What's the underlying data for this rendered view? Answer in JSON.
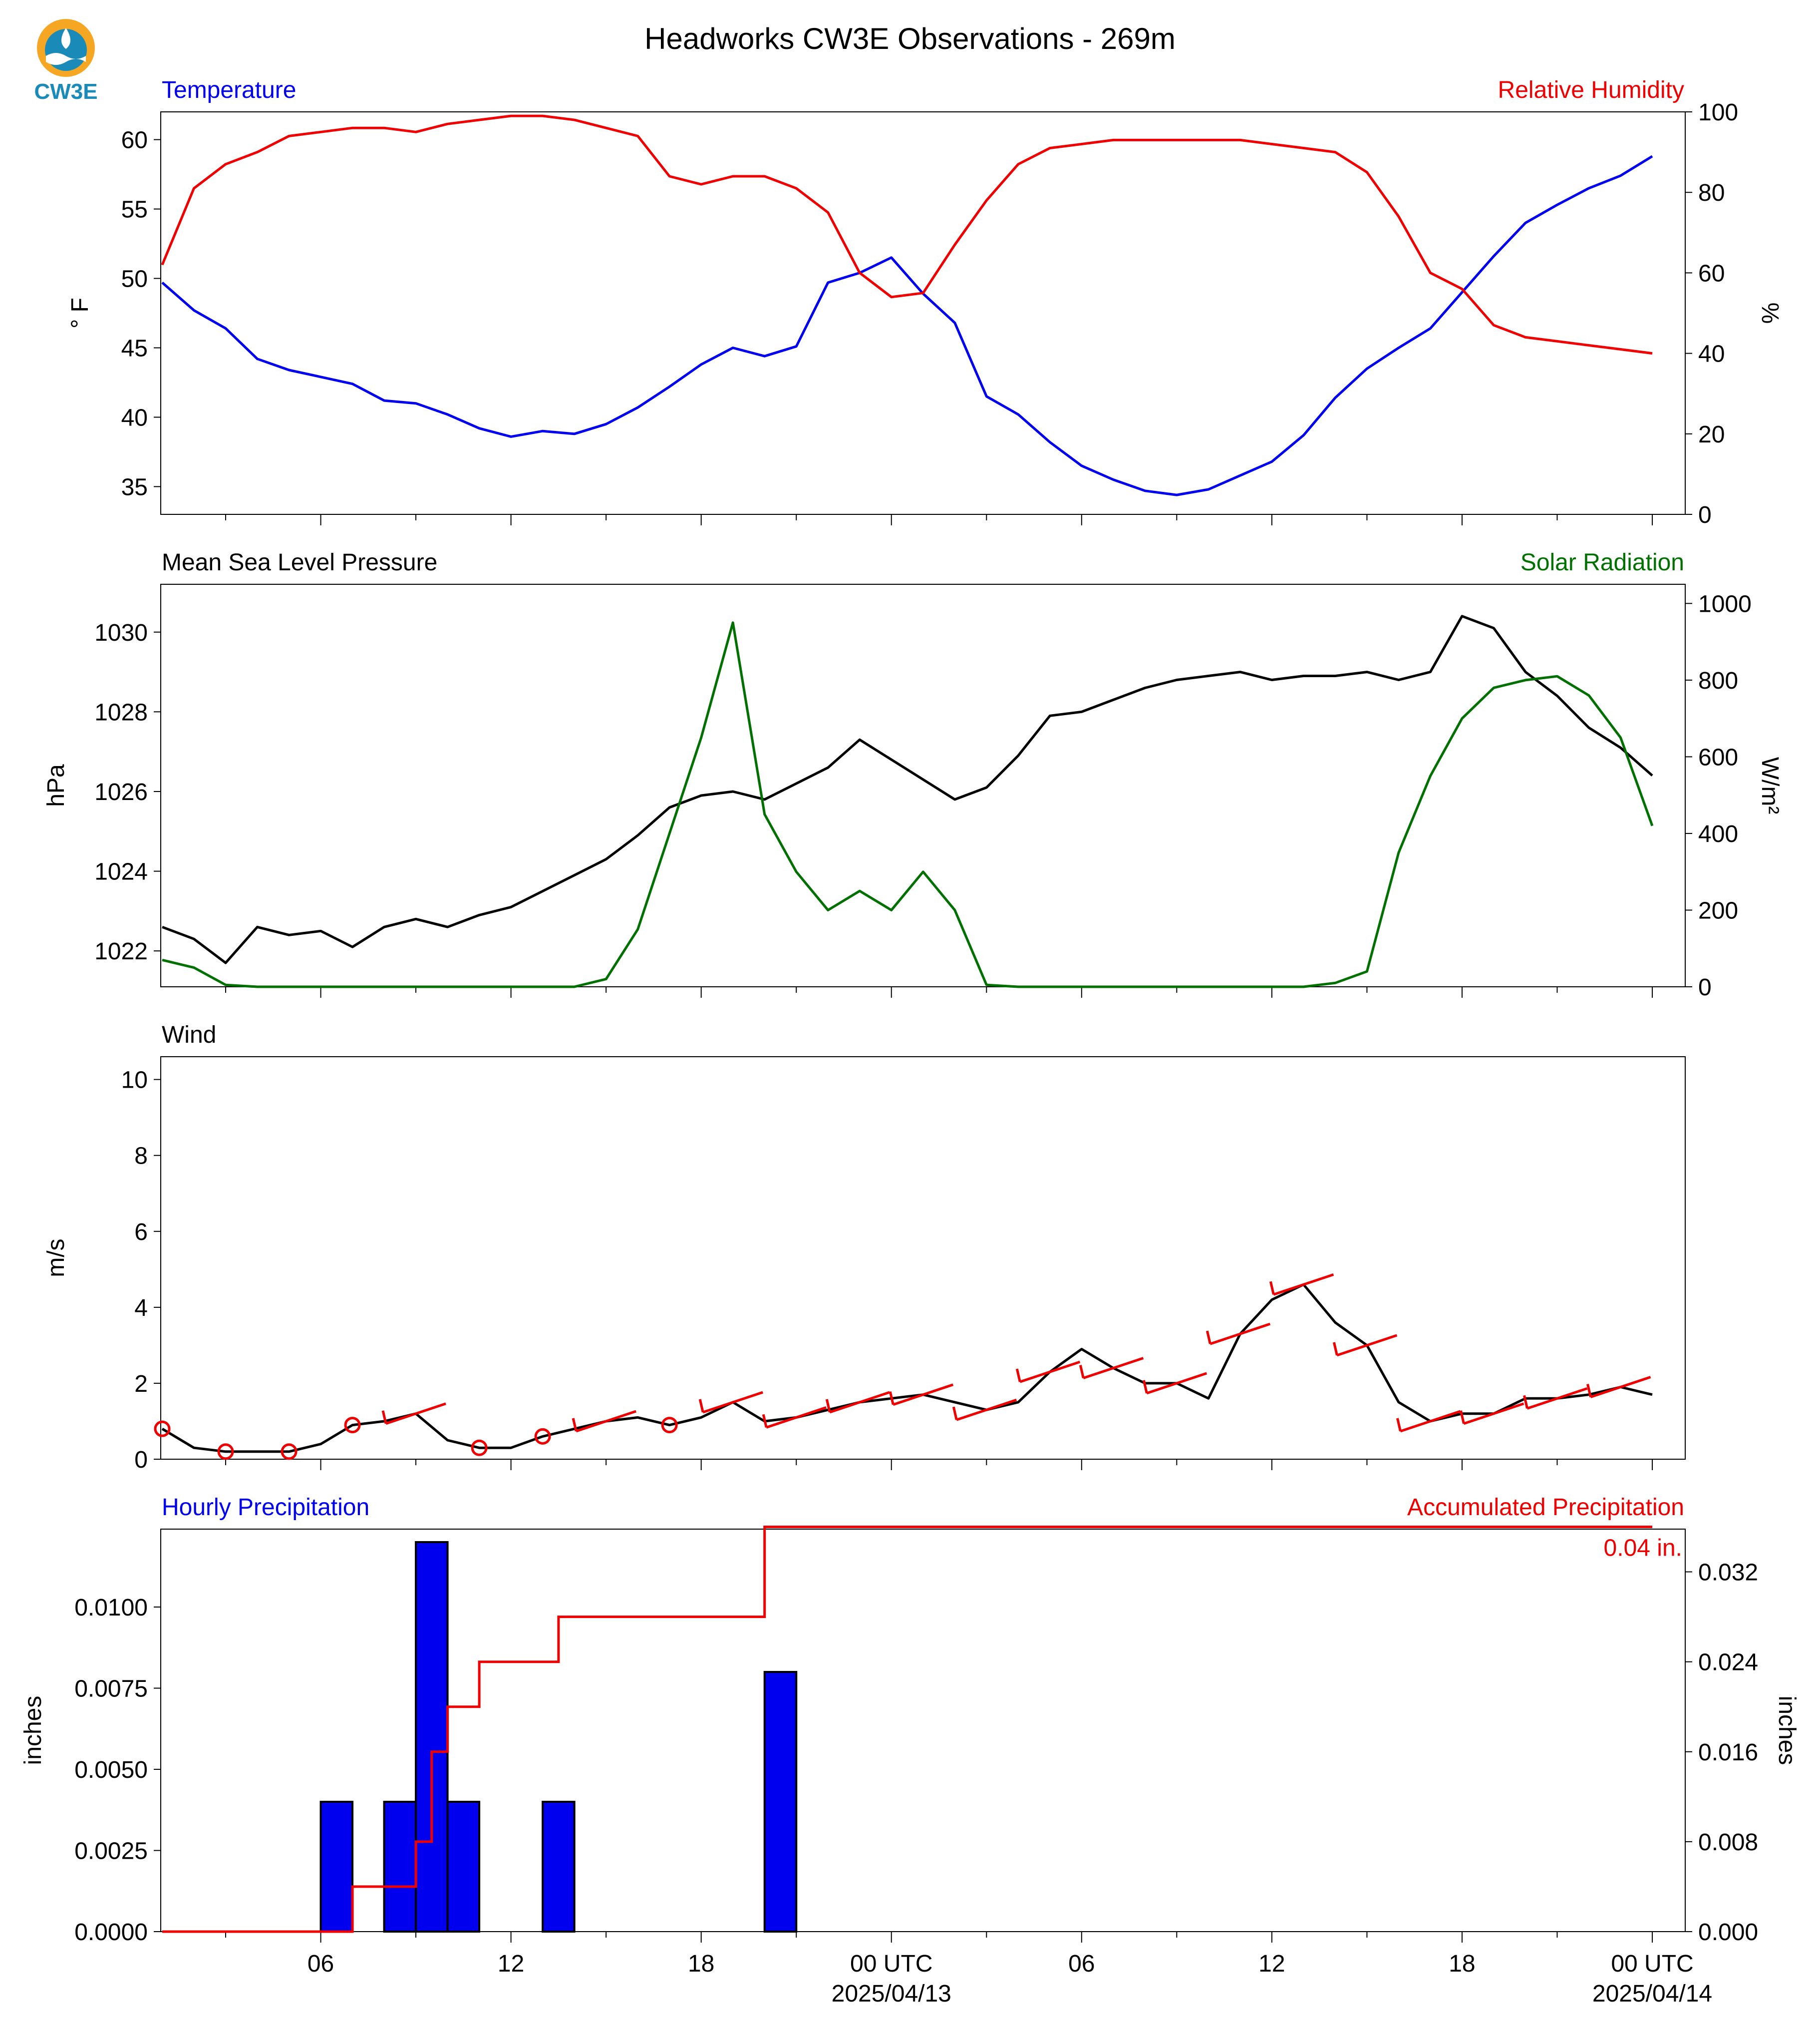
{
  "title": "Headworks CW3E Observations - 269m",
  "logo": {
    "text": "CW3E",
    "colors": [
      "#f5a623",
      "#1a8bb8",
      "#ffffff"
    ]
  },
  "time_axis": {
    "start": "2025-04-12T01:00Z",
    "end": "2025-04-14T00:00Z",
    "ticks": [
      {
        "t": "2025-04-12T06:00Z",
        "label": "06",
        "sub": ""
      },
      {
        "t": "2025-04-12T12:00Z",
        "label": "12",
        "sub": ""
      },
      {
        "t": "2025-04-12T18:00Z",
        "label": "18",
        "sub": ""
      },
      {
        "t": "2025-04-13T00:00Z",
        "label": "00 UTC",
        "sub": "2025/04/13"
      },
      {
        "t": "2025-04-13T06:00Z",
        "label": "06",
        "sub": ""
      },
      {
        "t": "2025-04-13T12:00Z",
        "label": "12",
        "sub": ""
      },
      {
        "t": "2025-04-13T18:00Z",
        "label": "18",
        "sub": ""
      },
      {
        "t": "2025-04-14T00:00Z",
        "label": "00 UTC",
        "sub": "2025/04/14"
      }
    ]
  },
  "chart_data": [
    {
      "type": "line",
      "left_title": "Temperature",
      "right_title": "Relative Humidity",
      "ylabel": "° F",
      "y2label": "%",
      "ylim": [
        33,
        62
      ],
      "yticks": [
        35,
        40,
        45,
        50,
        55,
        60
      ],
      "y2lim": [
        0,
        100
      ],
      "y2ticks": [
        0,
        20,
        40,
        60,
        80,
        100
      ],
      "series": [
        {
          "axis": "left",
          "color": "#0000ee",
          "x": [
            1,
            2,
            3,
            4,
            5,
            6,
            7,
            8,
            9,
            10,
            11,
            12,
            13,
            14,
            15,
            16,
            17,
            18,
            19,
            20,
            21,
            22,
            23,
            24,
            25,
            26,
            27,
            28,
            29,
            30,
            31,
            32,
            33,
            34,
            35,
            36,
            37,
            38,
            39,
            40,
            41,
            42,
            43,
            44,
            45,
            46,
            47,
            48
          ],
          "y": [
            49.7,
            47.7,
            46.4,
            44.2,
            43.4,
            42.9,
            42.4,
            41.2,
            41.0,
            40.2,
            39.2,
            38.6,
            39.0,
            38.8,
            39.5,
            40.7,
            42.2,
            43.8,
            45.0,
            44.4,
            45.1,
            49.7,
            50.4,
            51.5,
            48.9,
            46.8,
            41.5,
            40.2,
            38.2,
            36.5,
            35.5,
            34.7,
            34.4,
            34.8,
            35.8,
            36.8,
            38.7,
            41.4,
            43.5,
            45.0,
            46.4,
            49.0,
            51.6,
            54.0,
            55.3,
            56.5,
            57.4,
            58.8
          ]
        },
        {
          "axis": "right",
          "color": "#ee0000",
          "x": [
            1,
            2,
            3,
            4,
            5,
            6,
            7,
            8,
            9,
            10,
            11,
            12,
            13,
            14,
            15,
            16,
            17,
            18,
            19,
            20,
            21,
            22,
            23,
            24,
            25,
            26,
            27,
            28,
            29,
            30,
            31,
            32,
            33,
            34,
            35,
            36,
            37,
            38,
            39,
            40,
            41,
            42,
            43,
            44,
            45,
            46,
            47,
            48
          ],
          "y": [
            62,
            81,
            87,
            90,
            94,
            95,
            96,
            96,
            95,
            97,
            98,
            99,
            99,
            98,
            96,
            94,
            84,
            82,
            84,
            84,
            81,
            75,
            60,
            54,
            55,
            67,
            78,
            87,
            91,
            92,
            93,
            93,
            93,
            93,
            93,
            92,
            91,
            90,
            85,
            74,
            60,
            56,
            47,
            44,
            43,
            42,
            41,
            40
          ]
        }
      ]
    },
    {
      "type": "line",
      "left_title": "Mean Sea Level Pressure",
      "right_title": "Solar Radiation",
      "ylabel": "hPa",
      "y2label": "W/m²",
      "ylim": [
        1021.1,
        1031.2
      ],
      "yticks": [
        1022,
        1024,
        1026,
        1028,
        1030
      ],
      "y2lim": [
        0,
        1050
      ],
      "y2ticks": [
        0,
        200,
        400,
        600,
        800,
        1000
      ],
      "series": [
        {
          "axis": "left",
          "color": "#000000",
          "x": [
            1,
            2,
            3,
            4,
            5,
            6,
            7,
            8,
            9,
            10,
            11,
            12,
            13,
            14,
            15,
            16,
            17,
            18,
            19,
            20,
            21,
            22,
            23,
            24,
            25,
            26,
            27,
            28,
            29,
            30,
            31,
            32,
            33,
            34,
            35,
            36,
            37,
            38,
            39,
            40,
            41,
            42,
            43,
            44,
            45,
            46,
            47,
            48
          ],
          "y": [
            1022.6,
            1022.3,
            1021.7,
            1022.6,
            1022.4,
            1022.5,
            1022.1,
            1022.6,
            1022.8,
            1022.6,
            1022.9,
            1023.1,
            1023.5,
            1023.9,
            1024.3,
            1024.9,
            1025.6,
            1025.9,
            1026.0,
            1025.8,
            1026.2,
            1026.6,
            1027.3,
            1026.8,
            1026.3,
            1025.8,
            1026.1,
            1026.9,
            1027.9,
            1028.0,
            1028.3,
            1028.6,
            1028.8,
            1028.9,
            1029.0,
            1028.8,
            1028.9,
            1028.9,
            1029.0,
            1028.8,
            1029.0,
            1030.4,
            1030.1,
            1029.0,
            1028.4,
            1027.6,
            1027.1,
            1026.4
          ]
        },
        {
          "axis": "right",
          "color": "#007000",
          "x": [
            1,
            2,
            3,
            4,
            5,
            6,
            7,
            8,
            9,
            10,
            11,
            12,
            13,
            14,
            15,
            16,
            17,
            18,
            19,
            20,
            21,
            22,
            23,
            24,
            25,
            26,
            27,
            28,
            29,
            30,
            31,
            32,
            33,
            34,
            35,
            36,
            37,
            38,
            39,
            40,
            41,
            42,
            43,
            44,
            45,
            46,
            47,
            48
          ],
          "y": [
            70,
            50,
            5,
            0,
            0,
            0,
            0,
            0,
            0,
            0,
            0,
            0,
            0,
            0,
            20,
            150,
            400,
            650,
            950,
            450,
            300,
            200,
            250,
            200,
            300,
            200,
            5,
            0,
            0,
            0,
            0,
            0,
            0,
            0,
            0,
            0,
            0,
            10,
            40,
            350,
            550,
            700,
            780,
            800,
            810,
            760,
            650,
            420
          ]
        }
      ]
    },
    {
      "type": "line",
      "left_title": "Wind",
      "ylabel": "m/s",
      "ylim": [
        0,
        10.6
      ],
      "yticks": [
        0,
        2,
        4,
        6,
        8,
        10
      ],
      "series": [
        {
          "color": "#000000",
          "x": [
            1,
            2,
            3,
            4,
            5,
            6,
            7,
            8,
            9,
            10,
            11,
            12,
            13,
            14,
            15,
            16,
            17,
            18,
            19,
            20,
            21,
            22,
            23,
            24,
            25,
            26,
            27,
            28,
            29,
            30,
            31,
            32,
            33,
            34,
            35,
            36,
            37,
            38,
            39,
            40,
            41,
            42,
            43,
            44,
            45,
            46,
            47,
            48
          ],
          "y": [
            0.8,
            0.3,
            0.2,
            0.2,
            0.2,
            0.4,
            0.9,
            1.0,
            1.2,
            0.5,
            0.3,
            0.3,
            0.6,
            0.8,
            1.0,
            1.1,
            0.9,
            1.1,
            1.5,
            1.0,
            1.1,
            1.3,
            1.5,
            1.6,
            1.7,
            1.5,
            1.3,
            1.5,
            2.3,
            2.9,
            2.4,
            2.0,
            2.0,
            1.6,
            3.3,
            4.2,
            4.6,
            3.6,
            3.0,
            1.5,
            1.0,
            1.2,
            1.2,
            1.6,
            1.6,
            1.7,
            1.9,
            1.7
          ]
        }
      ],
      "barbs": {
        "color": "#ee0000",
        "calm_marker": "circle"
      }
    },
    {
      "type": "bar",
      "left_title": "Hourly Precipitation",
      "right_title": "Accumulated Precipitation",
      "ylabel": "inches",
      "y2label": "inches",
      "ylim": [
        0,
        0.0124
      ],
      "yticks": [
        "0.0000",
        "0.0025",
        "0.0050",
        "0.0075",
        "0.0100"
      ],
      "y2lim": [
        0,
        0.0358
      ],
      "y2ticks": [
        "0.000",
        "0.008",
        "0.016",
        "0.024",
        "0.032"
      ],
      "bars": {
        "color": "#0000ee",
        "edge": "#000000",
        "start_hour": [
          6,
          8,
          9,
          10,
          13,
          20
        ],
        "values": [
          0.004,
          0.004,
          0.012,
          0.004,
          0.004,
          0.008
        ]
      },
      "accum": {
        "color": "#ee0000",
        "x": [
          1,
          7,
          9,
          9.5,
          10,
          11,
          13.5,
          20,
          48
        ],
        "y": [
          0.0,
          0.004,
          0.008,
          0.016,
          0.02,
          0.024,
          0.028,
          0.036,
          0.036
        ]
      },
      "accum_label": "0.04 in."
    }
  ]
}
